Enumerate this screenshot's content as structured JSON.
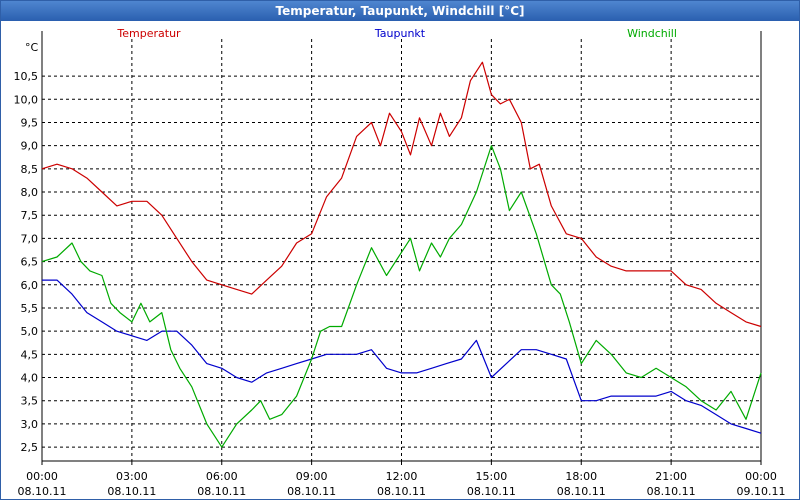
{
  "window": {
    "title": "Temperatur, Taupunkt, Windchill [°C]"
  },
  "chart_data": {
    "type": "line",
    "title": "Temperatur, Taupunkt, Windchill [°C]",
    "ylabel": "°C",
    "xlabel": "",
    "ylim": [
      2.2,
      11.3
    ],
    "grid": true,
    "legend": "top",
    "x_ticks": [
      {
        "time": "00:00",
        "date": "08.10.11"
      },
      {
        "time": "03:00",
        "date": "08.10.11"
      },
      {
        "time": "06:00",
        "date": "08.10.11"
      },
      {
        "time": "09:00",
        "date": "08.10.11"
      },
      {
        "time": "12:00",
        "date": "08.10.11"
      },
      {
        "time": "15:00",
        "date": "08.10.11"
      },
      {
        "time": "18:00",
        "date": "08.10.11"
      },
      {
        "time": "21:00",
        "date": "08.10.11"
      },
      {
        "time": "00:00",
        "date": "09.10.11"
      }
    ],
    "y_ticks": [
      "2,5",
      "3,0",
      "3,5",
      "4,0",
      "4,5",
      "5,0",
      "5,5",
      "6,0",
      "6,5",
      "7,0",
      "7,5",
      "8,0",
      "8,5",
      "9,0",
      "9,5",
      "10,0",
      "10,5"
    ],
    "y_tick_values": [
      2.5,
      3.0,
      3.5,
      4.0,
      4.5,
      5.0,
      5.5,
      6.0,
      6.5,
      7.0,
      7.5,
      8.0,
      8.5,
      9.0,
      9.5,
      10.0,
      10.5
    ],
    "x_unit": "hours since 08.10.11 00:00",
    "series": [
      {
        "name": "Temperatur",
        "color": "#cc0000",
        "x": [
          0,
          0.5,
          1,
          1.5,
          2,
          2.5,
          3,
          3.5,
          4,
          4.5,
          5,
          5.5,
          6,
          6.5,
          7,
          7.5,
          8,
          8.5,
          9,
          9.5,
          10,
          10.5,
          11,
          11.3,
          11.6,
          12,
          12.3,
          12.6,
          13,
          13.3,
          13.6,
          14,
          14.3,
          14.7,
          15,
          15.3,
          15.6,
          16,
          16.3,
          16.6,
          17,
          17.5,
          18,
          18.5,
          19,
          19.5,
          20,
          20.5,
          21,
          21.5,
          22,
          22.5,
          23,
          23.5,
          24
        ],
        "values": [
          8.5,
          8.6,
          8.5,
          8.3,
          8.0,
          7.7,
          7.8,
          7.8,
          7.5,
          7.0,
          6.5,
          6.1,
          6.0,
          5.9,
          5.8,
          6.1,
          6.4,
          6.9,
          7.1,
          7.9,
          8.3,
          9.2,
          9.5,
          9.0,
          9.7,
          9.3,
          8.8,
          9.6,
          9.0,
          9.7,
          9.2,
          9.6,
          10.4,
          10.8,
          10.1,
          9.9,
          10.0,
          9.5,
          8.5,
          8.6,
          7.7,
          7.1,
          7.0,
          6.6,
          6.4,
          6.3,
          6.3,
          6.3,
          6.3,
          6.0,
          5.9,
          5.6,
          5.4,
          5.2,
          5.1
        ]
      },
      {
        "name": "Taupunkt",
        "color": "#0000cc",
        "x": [
          0,
          0.5,
          1,
          1.5,
          2,
          2.5,
          3,
          3.5,
          4,
          4.5,
          5,
          5.5,
          6,
          6.5,
          7,
          7.5,
          8,
          8.5,
          9,
          9.5,
          10,
          10.5,
          11,
          11.5,
          12,
          12.5,
          13,
          13.5,
          14,
          14.5,
          15,
          15.5,
          16,
          16.5,
          17,
          17.5,
          18,
          18.5,
          19,
          19.5,
          20,
          20.5,
          21,
          21.5,
          22,
          22.5,
          23,
          23.5,
          24
        ],
        "values": [
          6.1,
          6.1,
          5.8,
          5.4,
          5.2,
          5.0,
          4.9,
          4.8,
          5.0,
          5.0,
          4.7,
          4.3,
          4.2,
          4.0,
          3.9,
          4.1,
          4.2,
          4.3,
          4.4,
          4.5,
          4.5,
          4.5,
          4.6,
          4.2,
          4.1,
          4.1,
          4.2,
          4.3,
          4.4,
          4.8,
          4.0,
          4.3,
          4.6,
          4.6,
          4.5,
          4.4,
          3.5,
          3.5,
          3.6,
          3.6,
          3.6,
          3.6,
          3.7,
          3.5,
          3.4,
          3.2,
          3.0,
          2.9,
          2.8
        ]
      },
      {
        "name": "Windchill",
        "color": "#00aa00",
        "x": [
          0,
          0.5,
          1,
          1.3,
          1.6,
          2,
          2.3,
          2.6,
          3,
          3.3,
          3.6,
          4,
          4.3,
          4.6,
          5,
          5.5,
          6,
          6.5,
          7,
          7.3,
          7.6,
          8,
          8.5,
          9,
          9.3,
          9.6,
          10,
          10.5,
          11,
          11.5,
          12,
          12.3,
          12.6,
          13,
          13.3,
          13.6,
          14,
          14.5,
          15,
          15.3,
          15.6,
          16,
          16.5,
          17,
          17.3,
          17.6,
          18,
          18.5,
          19,
          19.5,
          20,
          20.5,
          21,
          21.5,
          22,
          22.5,
          23,
          23.5,
          24
        ],
        "values": [
          6.5,
          6.6,
          6.9,
          6.5,
          6.3,
          6.2,
          5.6,
          5.4,
          5.2,
          5.6,
          5.2,
          5.4,
          4.6,
          4.2,
          3.8,
          3.0,
          2.5,
          3.0,
          3.3,
          3.5,
          3.1,
          3.2,
          3.6,
          4.4,
          5.0,
          5.1,
          5.1,
          6.0,
          6.8,
          6.2,
          6.7,
          7.0,
          6.3,
          6.9,
          6.6,
          7.0,
          7.3,
          8.0,
          9.0,
          8.5,
          7.6,
          8.0,
          7.1,
          6.0,
          5.8,
          5.2,
          4.3,
          4.8,
          4.5,
          4.1,
          4.0,
          4.2,
          4.0,
          3.8,
          3.5,
          3.3,
          3.7,
          3.1,
          4.1
        ]
      }
    ]
  }
}
